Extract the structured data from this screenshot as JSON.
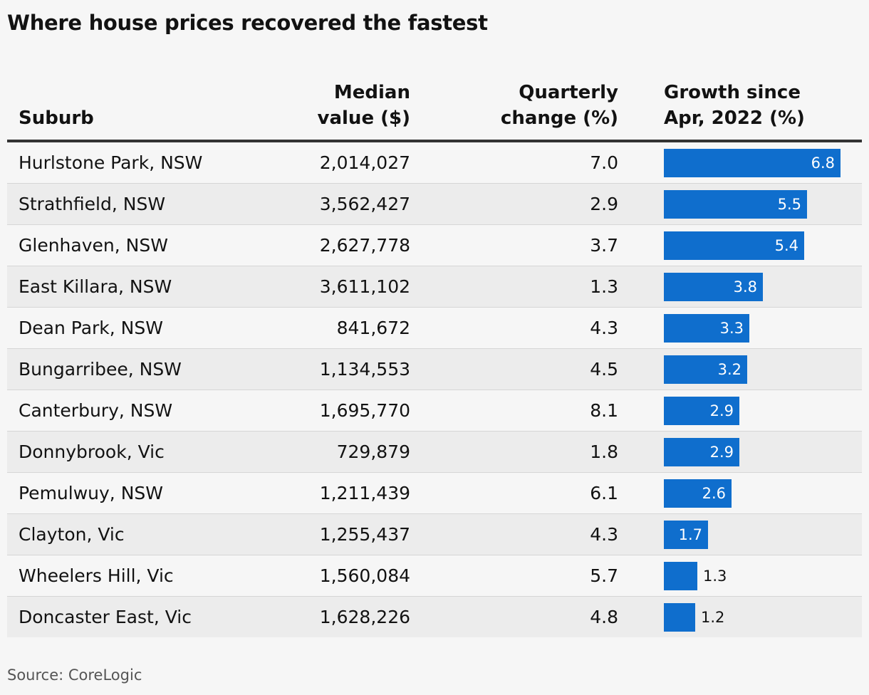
{
  "title": "Where house prices recovered the fastest",
  "source": "Source: CoreLogic",
  "colors": {
    "bar": "#0f6ecd",
    "background": "#f6f6f6",
    "alt_row": "#ececec"
  },
  "chart_data": {
    "type": "table",
    "title": "Where house prices recovered the fastest",
    "columns": [
      {
        "key": "suburb",
        "lines": [
          "",
          "Suburb"
        ]
      },
      {
        "key": "median",
        "lines": [
          "Median",
          "value ($)"
        ]
      },
      {
        "key": "quarterly",
        "lines": [
          "Quarterly",
          "change (%)"
        ]
      },
      {
        "key": "growth",
        "lines": [
          "Growth since",
          "Apr, 2022 (%)"
        ]
      }
    ],
    "growth_max": 7.4,
    "rows": [
      {
        "suburb": "Hurlstone Park, NSW",
        "median": "2,014,027",
        "quarterly": "7.0",
        "growth": 6.8
      },
      {
        "suburb": "Strathfield, NSW",
        "median": "3,562,427",
        "quarterly": "2.9",
        "growth": 5.5
      },
      {
        "suburb": "Glenhaven, NSW",
        "median": "2,627,778",
        "quarterly": "3.7",
        "growth": 5.4
      },
      {
        "suburb": "East Killara, NSW",
        "median": "3,611,102",
        "quarterly": "1.3",
        "growth": 3.8
      },
      {
        "suburb": "Dean Park, NSW",
        "median": "841,672",
        "quarterly": "4.3",
        "growth": 3.3
      },
      {
        "suburb": "Bungarribee, NSW",
        "median": "1,134,553",
        "quarterly": "4.5",
        "growth": 3.2
      },
      {
        "suburb": "Canterbury, NSW",
        "median": "1,695,770",
        "quarterly": "8.1",
        "growth": 2.9
      },
      {
        "suburb": "Donnybrook, Vic",
        "median": "729,879",
        "quarterly": "1.8",
        "growth": 2.9
      },
      {
        "suburb": "Pemulwuy, NSW",
        "median": "1,211,439",
        "quarterly": "6.1",
        "growth": 2.6
      },
      {
        "suburb": "Clayton, Vic",
        "median": "1,255,437",
        "quarterly": "4.3",
        "growth": 1.7
      },
      {
        "suburb": "Wheelers Hill, Vic",
        "median": "1,560,084",
        "quarterly": "5.7",
        "growth": 1.3
      },
      {
        "suburb": "Doncaster East, Vic",
        "median": "1,628,226",
        "quarterly": "4.8",
        "growth": 1.2
      }
    ]
  }
}
